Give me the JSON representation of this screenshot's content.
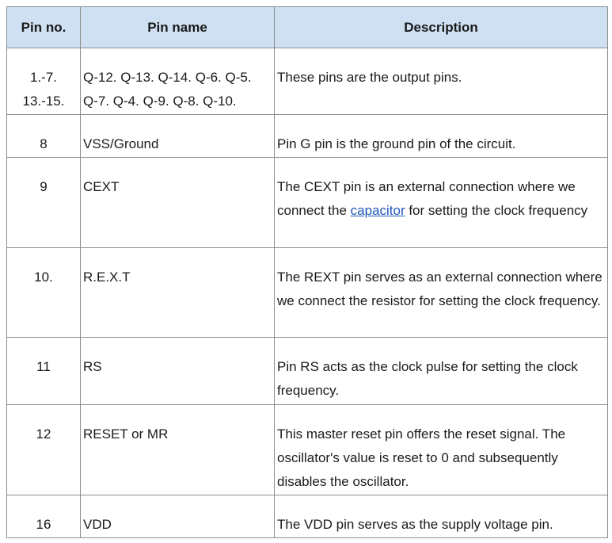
{
  "headers": [
    "Pin no.",
    "Pin name",
    "Description"
  ],
  "rows": [
    {
      "pin_no": [
        "1.-7.",
        "13.-15."
      ],
      "pin_name": [
        "Q-12. Q-13. Q-14. Q-6. Q-5.",
        "Q-7. Q-4.  Q-9. Q-8. Q-10."
      ],
      "description": "These pins are the output pins."
    },
    {
      "pin_no": [
        "8"
      ],
      "pin_name": [
        "VSS/Ground"
      ],
      "description": "Pin G pin is the ground pin of the circuit."
    },
    {
      "pin_no": [
        "9"
      ],
      "pin_name": [
        "CEXT"
      ],
      "description_before": "The CEXT pin is an external connection where we connect the ",
      "description_link": "capacitor",
      "description_after": " for setting the clock frequency"
    },
    {
      "pin_no": [
        "10."
      ],
      "pin_name": [
        "R.E.X.T"
      ],
      "description": "The REXT pin serves as an external connection where we connect the resistor for setting the clock frequency."
    },
    {
      "pin_no": [
        "11"
      ],
      "pin_name": [
        "RS"
      ],
      "description": "Pin RS acts as the clock pulse for setting the clock frequency."
    },
    {
      "pin_no": [
        "12"
      ],
      "pin_name": [
        "RESET or MR"
      ],
      "description": "This master reset pin offers the reset signal. The oscillator's value is reset to 0 and subsequently disables the oscillator."
    },
    {
      "pin_no": [
        "16"
      ],
      "pin_name": [
        "VDD"
      ],
      "description": "The VDD pin serves as the supply voltage pin."
    }
  ]
}
